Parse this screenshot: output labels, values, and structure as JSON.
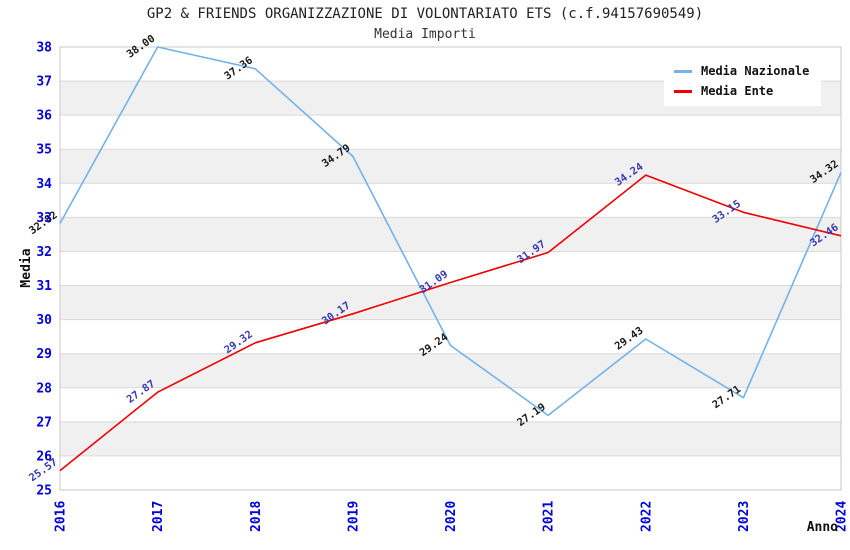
{
  "chart_data": {
    "type": "line",
    "title": "GP2 & FRIENDS ORGANIZZAZIONE DI VOLONTARIATO ETS (c.f.94157690549)",
    "subtitle": "Media Importi",
    "xlabel": "Anno",
    "ylabel": "Media",
    "x": [
      "2016",
      "2017",
      "2018",
      "2019",
      "2020",
      "2021",
      "2022",
      "2023",
      "2024"
    ],
    "ylim": [
      25,
      38
    ],
    "ytick_step": 1,
    "series": [
      {
        "name": "Media Nazionale",
        "color": "#74b2e8",
        "label_color": "#1a1a1a",
        "values": [
          32.82,
          38.0,
          37.36,
          34.79,
          29.24,
          27.19,
          29.43,
          27.71,
          34.32
        ]
      },
      {
        "name": "Media Ente",
        "color": "#ee0000",
        "label_color": "#3a3ab4",
        "values": [
          25.57,
          27.87,
          29.32,
          30.17,
          31.09,
          31.97,
          34.24,
          33.15,
          32.46
        ]
      }
    ],
    "legend_position": "top-right",
    "grid": "horizontal-gridlines-with-alternating-bands",
    "colors": {
      "tick_label": "#0000dd",
      "band": "#f0f0f0",
      "gridline": "#d9d9d9",
      "plot_border": "#c9c9c9",
      "axis_title": "#111111"
    }
  }
}
